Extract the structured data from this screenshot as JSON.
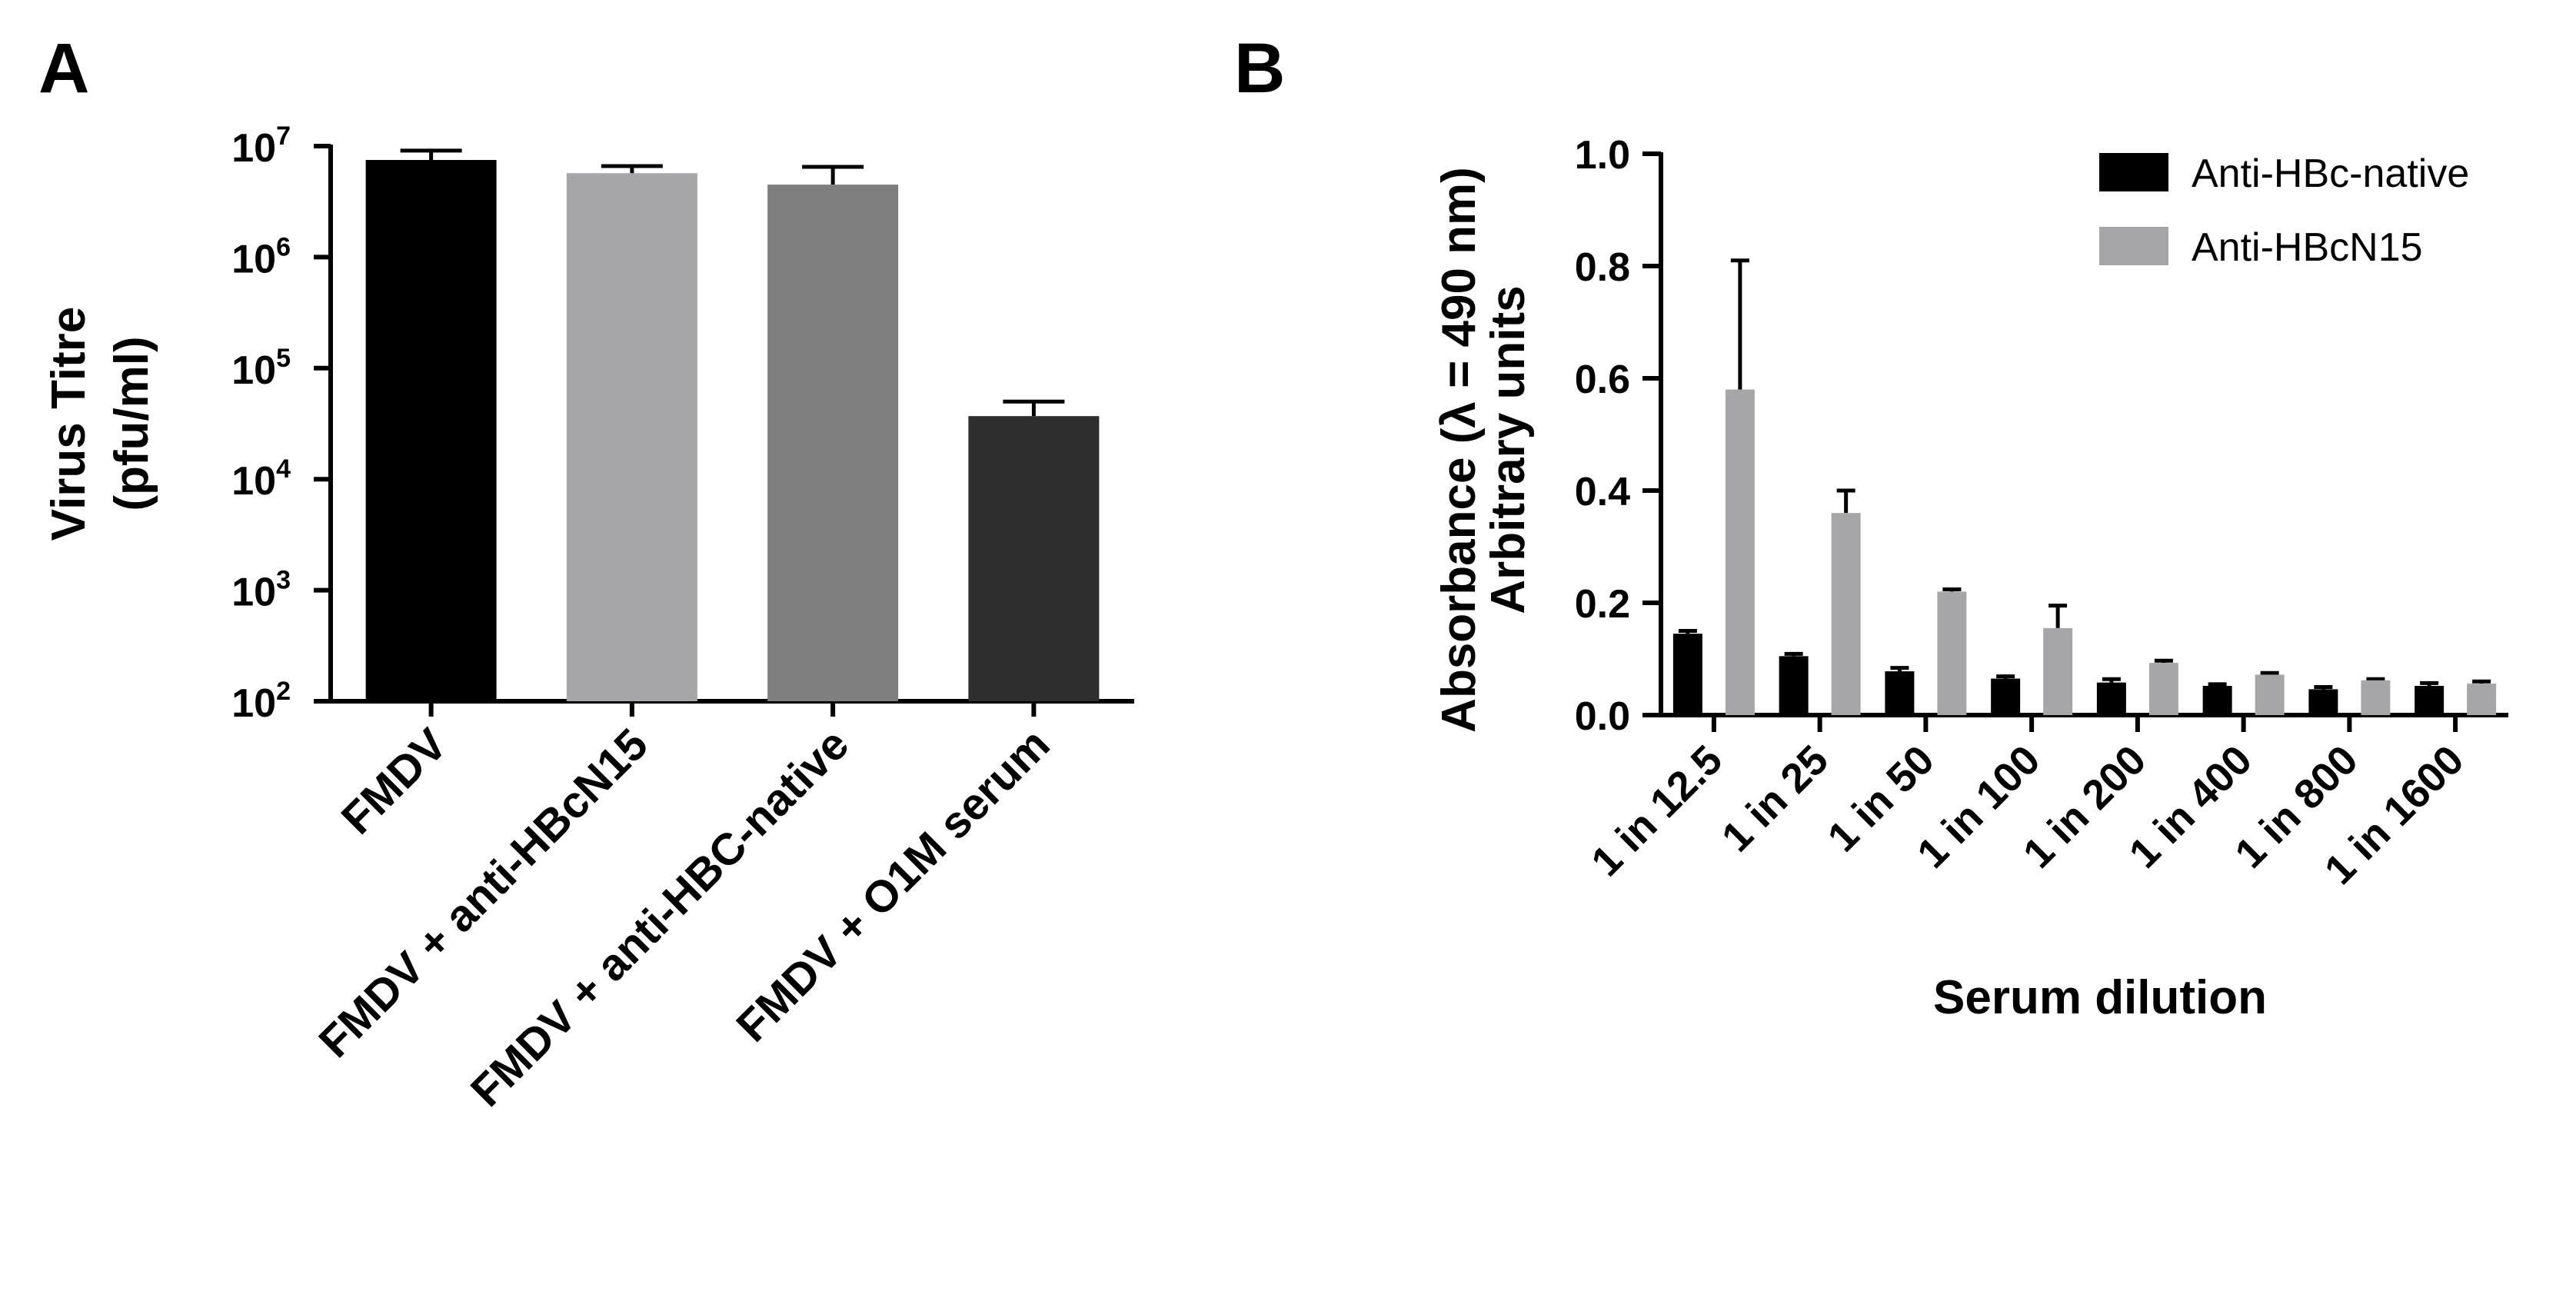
{
  "chart_data": [
    {
      "panel": "A",
      "type": "bar",
      "title": "",
      "xlabel": "",
      "ylabel_line1": "Virus Titre",
      "ylabel_line2": "(pfu/ml)",
      "yscale": "log",
      "ylim": [
        100,
        10000000
      ],
      "yticks": [
        {
          "base": "10",
          "exp": "2"
        },
        {
          "base": "10",
          "exp": "3"
        },
        {
          "base": "10",
          "exp": "4"
        },
        {
          "base": "10",
          "exp": "5"
        },
        {
          "base": "10",
          "exp": "6"
        },
        {
          "base": "10",
          "exp": "7"
        }
      ],
      "categories": [
        "FMDV",
        "FMDV + anti-HBcN15",
        "FMDV + anti-HBC-native",
        "FMDV + O1M serum"
      ],
      "values": [
        7500000,
        5700000,
        4500000,
        37000
      ],
      "errors": [
        1600000,
        900000,
        2000000,
        13000
      ],
      "colors": [
        "#000000",
        "#a6a6a8",
        "#7f7f7f",
        "#2e2e2e"
      ]
    },
    {
      "panel": "B",
      "type": "bar",
      "title": "",
      "xlabel": "Serum dilution",
      "ylabel_line1": "Absorbance (λ = 490 nm)",
      "ylabel_line2": "Arbitrary units",
      "ylim": [
        0,
        1.0
      ],
      "yticks": [
        "0.0",
        "0.2",
        "0.4",
        "0.6",
        "0.8",
        "1.0"
      ],
      "categories": [
        "1 in 12.5",
        "1 in 25",
        "1 in 50",
        "1 in 100",
        "1 in 200",
        "1 in 400",
        "1 in 800",
        "1 in 1600"
      ],
      "series": [
        {
          "name": "Anti-HBc-native",
          "color": "#000000",
          "values": [
            0.145,
            0.105,
            0.078,
            0.065,
            0.058,
            0.052,
            0.046,
            0.052
          ],
          "errors": [
            0.005,
            0.004,
            0.006,
            0.004,
            0.006,
            0.003,
            0.004,
            0.005
          ]
        },
        {
          "name": "Anti-HBcN15",
          "color": "#a6a6a8",
          "values": [
            0.58,
            0.36,
            0.22,
            0.155,
            0.093,
            0.072,
            0.062,
            0.056
          ],
          "errors": [
            0.23,
            0.04,
            0.004,
            0.04,
            0.004,
            0.003,
            0.002,
            0.004
          ]
        }
      ],
      "legend": "top-right"
    }
  ],
  "panels": {
    "a_letter": "A",
    "b_letter": "B"
  }
}
